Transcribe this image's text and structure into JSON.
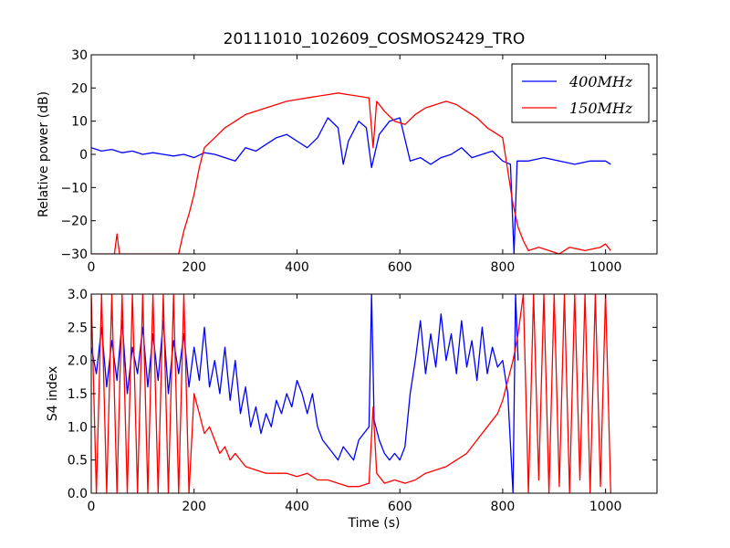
{
  "chart_data": [
    {
      "type": "line",
      "title": "20111010_102609_COSMOS2429_TRO",
      "xlabel": "",
      "ylabel": "Relative power (dB)",
      "xlim": [
        0,
        1100
      ],
      "ylim": [
        -30,
        30
      ],
      "xticks": [
        "0",
        "200",
        "400",
        "600",
        "800",
        "1000"
      ],
      "yticks": [
        "−30",
        "−20",
        "−10",
        "0",
        "10",
        "20",
        "30"
      ],
      "legend_position": "top-right",
      "series": [
        {
          "name": "400MHz",
          "color": "#0000ff",
          "points": [
            [
              0,
              2
            ],
            [
              20,
              1
            ],
            [
              40,
              1.5
            ],
            [
              60,
              0.5
            ],
            [
              80,
              1
            ],
            [
              100,
              0
            ],
            [
              120,
              0.5
            ],
            [
              140,
              0
            ],
            [
              160,
              -0.5
            ],
            [
              180,
              0
            ],
            [
              200,
              -1
            ],
            [
              220,
              0.5
            ],
            [
              240,
              0
            ],
            [
              260,
              -1
            ],
            [
              280,
              -2
            ],
            [
              300,
              2
            ],
            [
              320,
              1
            ],
            [
              340,
              3
            ],
            [
              360,
              5
            ],
            [
              380,
              6
            ],
            [
              400,
              4
            ],
            [
              420,
              2
            ],
            [
              440,
              5
            ],
            [
              460,
              11
            ],
            [
              480,
              8
            ],
            [
              490,
              -3
            ],
            [
              500,
              4
            ],
            [
              520,
              10
            ],
            [
              535,
              8
            ],
            [
              545,
              -4
            ],
            [
              560,
              6
            ],
            [
              580,
              10
            ],
            [
              600,
              11
            ],
            [
              620,
              -2
            ],
            [
              640,
              -1
            ],
            [
              660,
              -3
            ],
            [
              680,
              -1
            ],
            [
              700,
              0
            ],
            [
              720,
              2
            ],
            [
              740,
              -1
            ],
            [
              760,
              0
            ],
            [
              780,
              1
            ],
            [
              800,
              -2
            ],
            [
              815,
              -3
            ],
            [
              822,
              -30
            ],
            [
              828,
              -2
            ],
            [
              850,
              -2
            ],
            [
              880,
              -1
            ],
            [
              910,
              -2
            ],
            [
              940,
              -3
            ],
            [
              970,
              -2
            ],
            [
              1000,
              -2
            ],
            [
              1010,
              -3
            ]
          ]
        },
        {
          "name": "150MHz",
          "color": "#ff0000",
          "points": [
            [
              0,
              -30
            ],
            [
              45,
              -30
            ],
            [
              50,
              -24
            ],
            [
              55,
              -30
            ],
            [
              100,
              -30
            ],
            [
              170,
              -30
            ],
            [
              180,
              -23
            ],
            [
              190,
              -18
            ],
            [
              200,
              -12
            ],
            [
              210,
              -4
            ],
            [
              220,
              2
            ],
            [
              240,
              5
            ],
            [
              260,
              8
            ],
            [
              280,
              10
            ],
            [
              300,
              12
            ],
            [
              320,
              13
            ],
            [
              340,
              14
            ],
            [
              360,
              15
            ],
            [
              380,
              16
            ],
            [
              400,
              16.5
            ],
            [
              420,
              17
            ],
            [
              440,
              17.5
            ],
            [
              460,
              18
            ],
            [
              480,
              18.5
            ],
            [
              500,
              18
            ],
            [
              520,
              17.5
            ],
            [
              540,
              17
            ],
            [
              548,
              2
            ],
            [
              555,
              16
            ],
            [
              570,
              13
            ],
            [
              590,
              10
            ],
            [
              610,
              9
            ],
            [
              630,
              12
            ],
            [
              650,
              14
            ],
            [
              670,
              15
            ],
            [
              690,
              16
            ],
            [
              710,
              15
            ],
            [
              730,
              13
            ],
            [
              750,
              11
            ],
            [
              770,
              8
            ],
            [
              790,
              6
            ],
            [
              800,
              5
            ],
            [
              810,
              -5
            ],
            [
              820,
              -15
            ],
            [
              830,
              -22
            ],
            [
              840,
              -26
            ],
            [
              850,
              -29
            ],
            [
              870,
              -28
            ],
            [
              890,
              -29
            ],
            [
              910,
              -30
            ],
            [
              930,
              -28
            ],
            [
              960,
              -29
            ],
            [
              990,
              -28
            ],
            [
              1000,
              -27
            ],
            [
              1010,
              -29
            ]
          ]
        }
      ]
    },
    {
      "type": "line",
      "title": "",
      "xlabel": "Time (s)",
      "ylabel": "S4 index",
      "xlim": [
        0,
        1100
      ],
      "ylim": [
        0,
        3
      ],
      "xticks": [
        "0",
        "200",
        "400",
        "600",
        "800",
        "1000"
      ],
      "yticks": [
        "0.0",
        "0.5",
        "1.0",
        "1.5",
        "2.0",
        "2.5",
        "3.0"
      ],
      "series": [
        {
          "name": "400MHz",
          "color": "#0000ff",
          "points": [
            [
              0,
              2.2
            ],
            [
              10,
              1.8
            ],
            [
              20,
              2.5
            ],
            [
              30,
              1.6
            ],
            [
              40,
              2.3
            ],
            [
              50,
              1.7
            ],
            [
              60,
              2.6
            ],
            [
              70,
              1.5
            ],
            [
              80,
              2.2
            ],
            [
              90,
              1.8
            ],
            [
              100,
              2.5
            ],
            [
              110,
              1.6
            ],
            [
              120,
              2.4
            ],
            [
              130,
              1.7
            ],
            [
              140,
              2.6
            ],
            [
              150,
              1.5
            ],
            [
              160,
              2.3
            ],
            [
              170,
              1.8
            ],
            [
              180,
              2.4
            ],
            [
              190,
              1.6
            ],
            [
              200,
              2.2
            ],
            [
              210,
              1.7
            ],
            [
              220,
              2.5
            ],
            [
              230,
              1.6
            ],
            [
              240,
              2.0
            ],
            [
              250,
              1.5
            ],
            [
              260,
              2.2
            ],
            [
              270,
              1.4
            ],
            [
              280,
              2.0
            ],
            [
              290,
              1.2
            ],
            [
              300,
              1.6
            ],
            [
              310,
              1.0
            ],
            [
              320,
              1.3
            ],
            [
              330,
              0.9
            ],
            [
              340,
              1.2
            ],
            [
              350,
              1.0
            ],
            [
              360,
              1.4
            ],
            [
              370,
              1.2
            ],
            [
              380,
              1.5
            ],
            [
              390,
              1.3
            ],
            [
              400,
              1.7
            ],
            [
              410,
              1.5
            ],
            [
              420,
              1.2
            ],
            [
              430,
              1.5
            ],
            [
              440,
              1.0
            ],
            [
              450,
              0.8
            ],
            [
              460,
              0.7
            ],
            [
              470,
              0.6
            ],
            [
              480,
              0.5
            ],
            [
              490,
              0.7
            ],
            [
              500,
              0.6
            ],
            [
              510,
              0.5
            ],
            [
              520,
              0.8
            ],
            [
              530,
              0.9
            ],
            [
              540,
              1.0
            ],
            [
              545,
              3.0
            ],
            [
              550,
              1.1
            ],
            [
              560,
              0.8
            ],
            [
              570,
              0.6
            ],
            [
              580,
              0.5
            ],
            [
              590,
              0.6
            ],
            [
              600,
              0.5
            ],
            [
              610,
              0.7
            ],
            [
              620,
              1.5
            ],
            [
              630,
              2.0
            ],
            [
              640,
              2.6
            ],
            [
              650,
              1.8
            ],
            [
              660,
              2.4
            ],
            [
              670,
              1.9
            ],
            [
              680,
              2.7
            ],
            [
              690,
              2.0
            ],
            [
              700,
              2.4
            ],
            [
              710,
              1.8
            ],
            [
              720,
              2.6
            ],
            [
              730,
              1.9
            ],
            [
              740,
              2.3
            ],
            [
              750,
              1.7
            ],
            [
              760,
              2.5
            ],
            [
              770,
              1.8
            ],
            [
              780,
              2.2
            ],
            [
              790,
              1.9
            ],
            [
              800,
              2.0
            ],
            [
              810,
              1.5
            ],
            [
              820,
              0.0
            ],
            [
              825,
              3.0
            ],
            [
              830,
              2.0
            ]
          ]
        },
        {
          "name": "150MHz",
          "color": "#ff0000",
          "points": [
            [
              0,
              3.0
            ],
            [
              10,
              0.0
            ],
            [
              20,
              3.0
            ],
            [
              30,
              0.0
            ],
            [
              40,
              3.0
            ],
            [
              50,
              0.0
            ],
            [
              60,
              3.0
            ],
            [
              70,
              0.0
            ],
            [
              80,
              3.0
            ],
            [
              90,
              0.0
            ],
            [
              100,
              3.0
            ],
            [
              110,
              0.0
            ],
            [
              120,
              3.0
            ],
            [
              130,
              0.0
            ],
            [
              140,
              3.0
            ],
            [
              150,
              0.0
            ],
            [
              160,
              3.0
            ],
            [
              170,
              0.0
            ],
            [
              180,
              3.0
            ],
            [
              190,
              0.0
            ],
            [
              200,
              1.5
            ],
            [
              210,
              1.2
            ],
            [
              220,
              0.9
            ],
            [
              230,
              1.0
            ],
            [
              240,
              0.8
            ],
            [
              250,
              0.6
            ],
            [
              260,
              0.7
            ],
            [
              270,
              0.5
            ],
            [
              280,
              0.6
            ],
            [
              300,
              0.4
            ],
            [
              320,
              0.35
            ],
            [
              340,
              0.3
            ],
            [
              360,
              0.3
            ],
            [
              380,
              0.3
            ],
            [
              400,
              0.25
            ],
            [
              420,
              0.3
            ],
            [
              440,
              0.2
            ],
            [
              460,
              0.2
            ],
            [
              480,
              0.15
            ],
            [
              500,
              0.1
            ],
            [
              520,
              0.1
            ],
            [
              540,
              0.15
            ],
            [
              548,
              1.3
            ],
            [
              555,
              0.3
            ],
            [
              570,
              0.15
            ],
            [
              590,
              0.2
            ],
            [
              610,
              0.15
            ],
            [
              630,
              0.2
            ],
            [
              650,
              0.3
            ],
            [
              670,
              0.35
            ],
            [
              690,
              0.4
            ],
            [
              710,
              0.5
            ],
            [
              730,
              0.6
            ],
            [
              750,
              0.8
            ],
            [
              770,
              1.0
            ],
            [
              790,
              1.2
            ],
            [
              800,
              1.4
            ],
            [
              810,
              1.7
            ],
            [
              820,
              2.0
            ],
            [
              830,
              2.4
            ],
            [
              840,
              3.0
            ],
            [
              850,
              0.0
            ],
            [
              860,
              3.0
            ],
            [
              870,
              0.2
            ],
            [
              880,
              3.0
            ],
            [
              890,
              0.0
            ],
            [
              900,
              3.0
            ],
            [
              910,
              0.1
            ],
            [
              920,
              3.0
            ],
            [
              930,
              0.0
            ],
            [
              940,
              3.0
            ],
            [
              950,
              0.2
            ],
            [
              960,
              3.0
            ],
            [
              970,
              0.0
            ],
            [
              980,
              3.0
            ],
            [
              990,
              0.1
            ],
            [
              1000,
              3.0
            ],
            [
              1010,
              0.0
            ]
          ]
        }
      ]
    }
  ]
}
